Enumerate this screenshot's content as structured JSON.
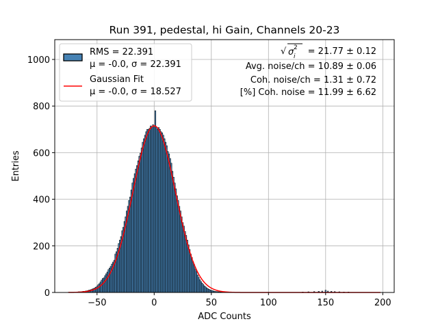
{
  "chart_data": {
    "type": "bar",
    "title": "Run 391, pedestal, hi Gain, Channels 20-23",
    "xlabel": "ADC Counts",
    "ylabel": "Entries",
    "xlim": [
      -87,
      210
    ],
    "ylim": [
      0,
      1085
    ],
    "xticks": [
      -50,
      0,
      50,
      100,
      150,
      200
    ],
    "xtick_labels": [
      "−50",
      "0",
      "50",
      "100",
      "150",
      "200"
    ],
    "yticks": [
      0,
      200,
      400,
      600,
      800,
      1000
    ],
    "ytick_labels": [
      "0",
      "200",
      "400",
      "600",
      "800",
      "1000"
    ],
    "grid": true,
    "legend_position": "upper-left",
    "colors": {
      "bars": "#4682b4",
      "bar_edge": "#000000",
      "fit": "#ff0000",
      "grid": "#b0b0b0"
    },
    "histogram": {
      "name": "RMS = 22.391",
      "line2": "μ = -0.0, σ = 22.391",
      "bin_width": 1,
      "bins": [
        [
          -75,
          1
        ],
        [
          -74,
          1
        ],
        [
          -73,
          1
        ],
        [
          -72,
          1
        ],
        [
          -71,
          1
        ],
        [
          -70,
          1
        ],
        [
          -69,
          2
        ],
        [
          -68,
          2
        ],
        [
          -67,
          2
        ],
        [
          -66,
          3
        ],
        [
          -65,
          3
        ],
        [
          -64,
          3
        ],
        [
          -63,
          4
        ],
        [
          -62,
          5
        ],
        [
          -61,
          5
        ],
        [
          -60,
          6
        ],
        [
          -59,
          7
        ],
        [
          -58,
          8
        ],
        [
          -57,
          10
        ],
        [
          -56,
          11
        ],
        [
          -55,
          13
        ],
        [
          -54,
          15
        ],
        [
          -53,
          17
        ],
        [
          -52,
          20
        ],
        [
          -51,
          23
        ],
        [
          -50,
          27
        ],
        [
          -49,
          33
        ],
        [
          -48,
          38
        ],
        [
          -47,
          45
        ],
        [
          -46,
          53
        ],
        [
          -45,
          60
        ],
        [
          -44,
          63
        ],
        [
          -43,
          72
        ],
        [
          -42,
          80
        ],
        [
          -41,
          88
        ],
        [
          -40,
          98
        ],
        [
          -39,
          105
        ],
        [
          -38,
          112
        ],
        [
          -37,
          122
        ],
        [
          -36,
          130
        ],
        [
          -35,
          138
        ],
        [
          -34,
          165
        ],
        [
          -33,
          175
        ],
        [
          -32,
          190
        ],
        [
          -31,
          210
        ],
        [
          -30,
          225
        ],
        [
          -29,
          240
        ],
        [
          -28,
          265
        ],
        [
          -27,
          280
        ],
        [
          -26,
          305
        ],
        [
          -25,
          325
        ],
        [
          -24,
          350
        ],
        [
          -23,
          370
        ],
        [
          -22,
          395
        ],
        [
          -21,
          410
        ],
        [
          -20,
          440
        ],
        [
          -19,
          470
        ],
        [
          -18,
          490
        ],
        [
          -17,
          510
        ],
        [
          -16,
          530
        ],
        [
          -15,
          545
        ],
        [
          -14,
          565
        ],
        [
          -13,
          585
        ],
        [
          -12,
          598
        ],
        [
          -11,
          620
        ],
        [
          -10,
          645
        ],
        [
          -9,
          660
        ],
        [
          -8,
          675
        ],
        [
          -7,
          690
        ],
        [
          -6,
          700
        ],
        [
          -5,
          700
        ],
        [
          -4,
          705
        ],
        [
          -3,
          715
        ],
        [
          -2,
          712
        ],
        [
          -1,
          720
        ],
        [
          0,
          710
        ],
        [
          1,
          780
        ],
        [
          2,
          710
        ],
        [
          3,
          700
        ],
        [
          4,
          708
        ],
        [
          5,
          700
        ],
        [
          6,
          690
        ],
        [
          7,
          685
        ],
        [
          8,
          675
        ],
        [
          9,
          660
        ],
        [
          10,
          645
        ],
        [
          11,
          630
        ],
        [
          12,
          605
        ],
        [
          13,
          595
        ],
        [
          14,
          575
        ],
        [
          15,
          555
        ],
        [
          16,
          520
        ],
        [
          17,
          495
        ],
        [
          18,
          470
        ],
        [
          19,
          445
        ],
        [
          20,
          415
        ],
        [
          21,
          395
        ],
        [
          22,
          370
        ],
        [
          23,
          350
        ],
        [
          24,
          325
        ],
        [
          25,
          300
        ],
        [
          26,
          285
        ],
        [
          27,
          262
        ],
        [
          28,
          245
        ],
        [
          29,
          225
        ],
        [
          30,
          205
        ],
        [
          31,
          185
        ],
        [
          32,
          165
        ],
        [
          33,
          150
        ],
        [
          34,
          132
        ],
        [
          35,
          120
        ],
        [
          36,
          100
        ],
        [
          37,
          90
        ],
        [
          38,
          75
        ],
        [
          39,
          65
        ],
        [
          40,
          55
        ],
        [
          41,
          47
        ],
        [
          42,
          40
        ],
        [
          43,
          34
        ],
        [
          44,
          28
        ],
        [
          45,
          24
        ],
        [
          46,
          20
        ],
        [
          47,
          16
        ],
        [
          48,
          14
        ],
        [
          49,
          11
        ],
        [
          50,
          9
        ],
        [
          51,
          8
        ],
        [
          52,
          6
        ],
        [
          53,
          5
        ],
        [
          54,
          4
        ],
        [
          55,
          4
        ],
        [
          56,
          3
        ],
        [
          57,
          3
        ],
        [
          58,
          2
        ],
        [
          59,
          2
        ],
        [
          60,
          2
        ],
        [
          61,
          1
        ],
        [
          62,
          1
        ],
        [
          63,
          1
        ],
        [
          64,
          1
        ],
        [
          65,
          1
        ],
        [
          130,
          2
        ],
        [
          135,
          3
        ],
        [
          140,
          4
        ],
        [
          144,
          5
        ],
        [
          147,
          6
        ],
        [
          150,
          10
        ],
        [
          152,
          6
        ],
        [
          155,
          5
        ],
        [
          158,
          4
        ],
        [
          162,
          3
        ],
        [
          166,
          2
        ],
        [
          170,
          2
        ]
      ]
    },
    "fit": {
      "name": "Gaussian Fit",
      "line2": "μ = -0.0, σ = 18.527",
      "mu": 0.0,
      "sigma": 18.527,
      "amplitude": 715,
      "x_range": [
        -75,
        198
      ]
    },
    "annotations": {
      "sigma_label": "= 21.77 ± 0.12",
      "avg_noise": "Avg. noise/ch = 10.89 ± 0.06",
      "coh_noise": "Coh. noise/ch = 1.31 ± 0.72",
      "coh_pct": "[%] Coh. noise = 11.99 ± 6.62"
    }
  }
}
